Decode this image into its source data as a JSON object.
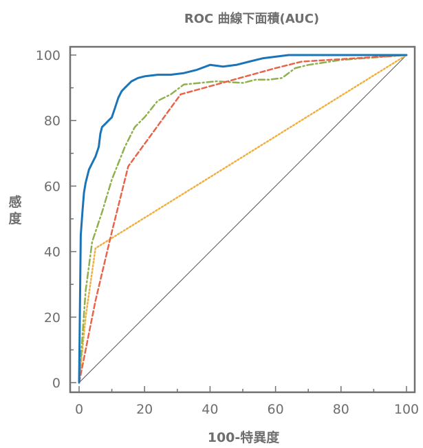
{
  "chart_data": {
    "type": "line",
    "title": "ROC 曲線下面積(AUC)",
    "xlabel": "100-特異度",
    "ylabel": "感度",
    "xlim": [
      0,
      100
    ],
    "ylim": [
      0,
      100
    ],
    "xticks": [
      0,
      20,
      40,
      60,
      80,
      100
    ],
    "yticks": [
      0,
      20,
      40,
      60,
      80,
      100
    ],
    "grid": false,
    "legend": "none",
    "series": [
      {
        "color": "#1a75b8",
        "style": "solid",
        "x": [
          0,
          0.5,
          1,
          1.5,
          2,
          2.5,
          3,
          4,
          5,
          6,
          6.5,
          7,
          8,
          9,
          10,
          11,
          12,
          13,
          14,
          15,
          16,
          18,
          20,
          24,
          28,
          32,
          36,
          40,
          44,
          48,
          52,
          56,
          60,
          64,
          68,
          72,
          76,
          80,
          90,
          100
        ],
        "y": [
          0,
          45,
          52,
          58,
          61,
          63,
          65,
          67,
          69,
          72,
          76,
          78,
          79,
          80,
          81,
          84,
          87,
          89,
          90,
          91,
          92,
          93,
          93.5,
          94,
          94,
          94.5,
          95.5,
          97,
          96.5,
          97,
          98,
          99,
          99.5,
          100,
          100,
          100,
          100,
          100,
          100,
          100
        ]
      },
      {
        "color": "#e8634a",
        "style": "dashed",
        "x": [
          0,
          2,
          5,
          10,
          15,
          31,
          60,
          68,
          100
        ],
        "y": [
          0,
          10,
          25,
          46,
          66,
          88,
          96,
          98,
          100
        ]
      },
      {
        "color": "#8fb04e",
        "style": "dashdot",
        "x": [
          0,
          2,
          4,
          7,
          10,
          14,
          17,
          20,
          24,
          28,
          32,
          42,
          50,
          54,
          58,
          62,
          66,
          70,
          80,
          100
        ],
        "y": [
          0,
          28,
          43,
          52,
          62,
          72,
          78,
          81,
          86,
          88,
          91,
          92,
          91.5,
          92.5,
          92.5,
          93,
          96,
          97,
          98.5,
          100
        ]
      },
      {
        "color": "#f0b040",
        "style": "dotted",
        "x": [
          0,
          2,
          5,
          100
        ],
        "y": [
          0,
          20,
          41,
          100
        ]
      },
      {
        "color": "#555555",
        "style": "thin",
        "x": [
          0,
          100
        ],
        "y": [
          0,
          100
        ]
      }
    ]
  }
}
